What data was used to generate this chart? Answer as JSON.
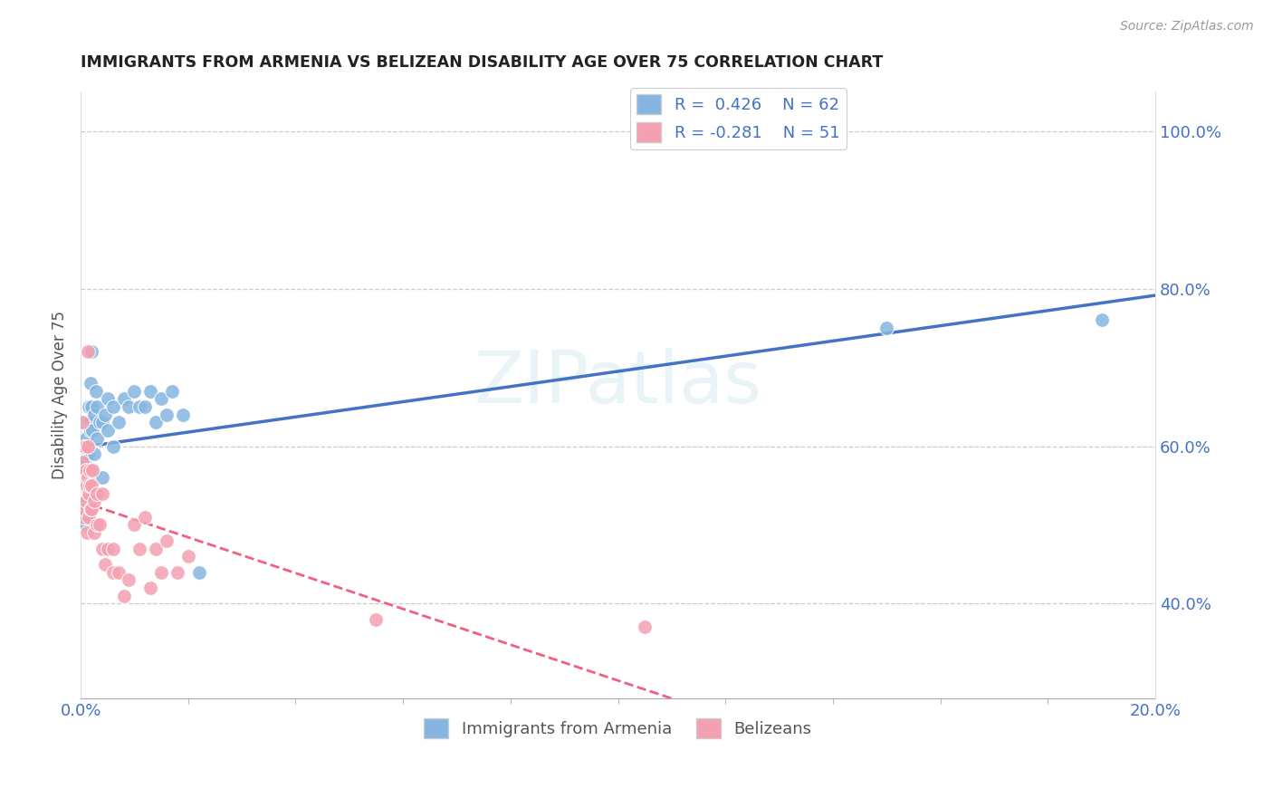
{
  "title": "IMMIGRANTS FROM ARMENIA VS BELIZEAN DISABILITY AGE OVER 75 CORRELATION CHART",
  "source": "Source: ZipAtlas.com",
  "ylabel": "Disability Age Over 75",
  "right_yticks": [
    40.0,
    60.0,
    80.0,
    100.0
  ],
  "legend_blue_r": "R =  0.426",
  "legend_blue_n": "N = 62",
  "legend_pink_r": "R = -0.281",
  "legend_pink_n": "N = 51",
  "blue_color": "#85B5E0",
  "pink_color": "#F4A0B0",
  "blue_line_color": "#4472C4",
  "pink_line_color": "#F06080",
  "watermark": "ZIPatlas",
  "blue_scatter_x": [
    0.0002,
    0.0003,
    0.0004,
    0.0004,
    0.0005,
    0.0005,
    0.0006,
    0.0006,
    0.0007,
    0.0007,
    0.0008,
    0.0008,
    0.0009,
    0.0009,
    0.001,
    0.001,
    0.001,
    0.0012,
    0.0012,
    0.0013,
    0.0013,
    0.0014,
    0.0014,
    0.0015,
    0.0015,
    0.0016,
    0.0016,
    0.0017,
    0.0018,
    0.0018,
    0.002,
    0.002,
    0.0022,
    0.0022,
    0.0025,
    0.0025,
    0.0028,
    0.003,
    0.003,
    0.0035,
    0.004,
    0.004,
    0.0045,
    0.005,
    0.005,
    0.006,
    0.006,
    0.007,
    0.008,
    0.009,
    0.01,
    0.011,
    0.012,
    0.013,
    0.014,
    0.015,
    0.016,
    0.017,
    0.019,
    0.022,
    0.15,
    0.19
  ],
  "blue_scatter_y": [
    0.56,
    0.51,
    0.6,
    0.53,
    0.58,
    0.55,
    0.63,
    0.56,
    0.52,
    0.58,
    0.55,
    0.5,
    0.57,
    0.53,
    0.61,
    0.57,
    0.53,
    0.6,
    0.56,
    0.63,
    0.59,
    0.55,
    0.51,
    0.65,
    0.6,
    0.63,
    0.57,
    0.54,
    0.68,
    0.62,
    0.72,
    0.65,
    0.62,
    0.57,
    0.64,
    0.59,
    0.67,
    0.61,
    0.65,
    0.63,
    0.63,
    0.56,
    0.64,
    0.62,
    0.66,
    0.65,
    0.6,
    0.63,
    0.66,
    0.65,
    0.67,
    0.65,
    0.65,
    0.67,
    0.63,
    0.66,
    0.64,
    0.67,
    0.64,
    0.44,
    0.75,
    0.76
  ],
  "pink_scatter_x": [
    0.0002,
    0.0003,
    0.0004,
    0.0004,
    0.0005,
    0.0005,
    0.0006,
    0.0006,
    0.0007,
    0.0008,
    0.0009,
    0.001,
    0.001,
    0.0011,
    0.0012,
    0.0013,
    0.0013,
    0.0014,
    0.0015,
    0.0015,
    0.0016,
    0.0017,
    0.0018,
    0.002,
    0.002,
    0.0022,
    0.0025,
    0.0025,
    0.003,
    0.003,
    0.0035,
    0.004,
    0.004,
    0.0045,
    0.005,
    0.006,
    0.006,
    0.007,
    0.008,
    0.009,
    0.01,
    0.011,
    0.012,
    0.013,
    0.014,
    0.015,
    0.016,
    0.018,
    0.02,
    0.055,
    0.105
  ],
  "pink_scatter_y": [
    0.55,
    0.52,
    0.63,
    0.58,
    0.55,
    0.51,
    0.6,
    0.56,
    0.52,
    0.55,
    0.6,
    0.57,
    0.53,
    0.49,
    0.55,
    0.6,
    0.56,
    0.72,
    0.54,
    0.51,
    0.55,
    0.57,
    0.52,
    0.55,
    0.52,
    0.57,
    0.53,
    0.49,
    0.54,
    0.5,
    0.5,
    0.47,
    0.54,
    0.45,
    0.47,
    0.47,
    0.44,
    0.44,
    0.41,
    0.43,
    0.5,
    0.47,
    0.51,
    0.42,
    0.47,
    0.44,
    0.48,
    0.44,
    0.46,
    0.38,
    0.37
  ],
  "xlim": [
    0.0,
    0.2
  ],
  "ylim": [
    0.28,
    1.05
  ],
  "figsize": [
    14.06,
    8.92
  ],
  "dpi": 100,
  "xtick_positions": [
    0.0,
    0.2
  ],
  "xtick_labels": [
    "0.0%",
    "20.0%"
  ]
}
